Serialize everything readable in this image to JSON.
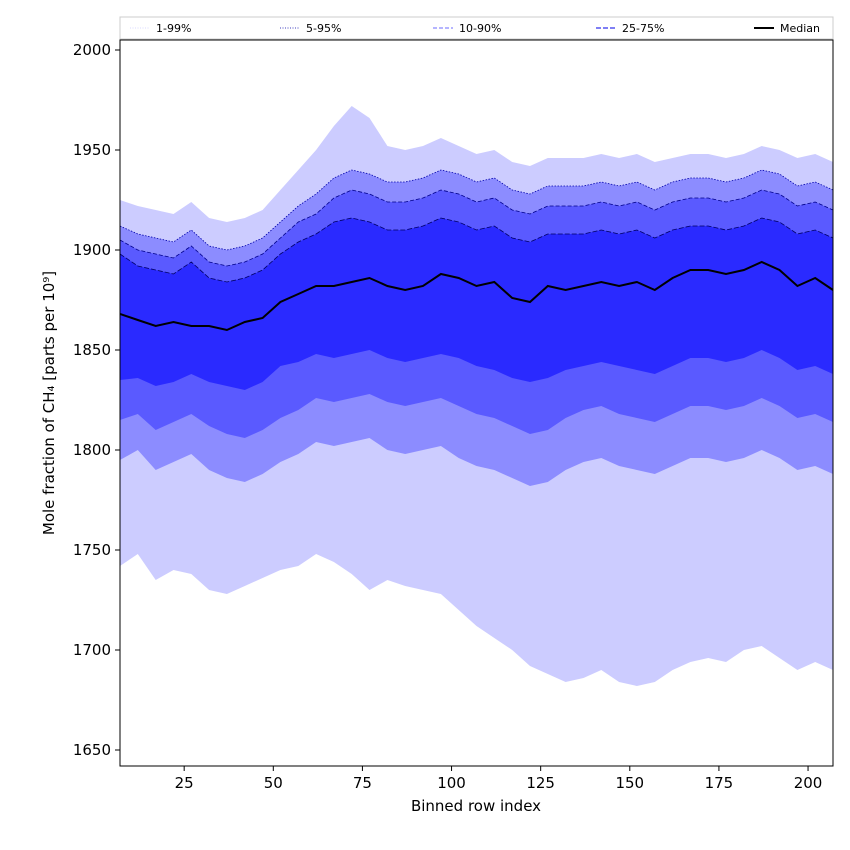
{
  "chart_data": {
    "type": "area",
    "xlabel": "Binned row index",
    "ylabel": "Mole fraction of CH₄ [parts per 10⁹]",
    "xlim": [
      7,
      207
    ],
    "ylim": [
      1642,
      2005
    ],
    "x_ticks": [
      25,
      50,
      75,
      100,
      125,
      150,
      175,
      200
    ],
    "y_ticks": [
      1650,
      1700,
      1750,
      1800,
      1850,
      1900,
      1950,
      2000
    ],
    "grid": false,
    "legend_placement": "top, above plot",
    "legend": [
      {
        "label": "1-99%",
        "style": "dotted",
        "color": "#ccccff"
      },
      {
        "label": "5-95%",
        "style": "dotted",
        "color": "#0000aa"
      },
      {
        "label": "10-90%",
        "style": "dashed",
        "color": "#6b6bff"
      },
      {
        "label": "25-75%",
        "style": "dashed",
        "color": "#3333ee"
      },
      {
        "label": "Median",
        "style": "solid",
        "color": "#000000"
      }
    ],
    "colors": {
      "band_1_99": "#ccccff",
      "band_5_95": "#8c8cff",
      "band_10_90": "#5a5aff",
      "band_25_75": "#2a2aff",
      "median": "#000000"
    },
    "x": [
      7,
      12,
      17,
      22,
      27,
      32,
      37,
      42,
      47,
      52,
      57,
      62,
      67,
      72,
      77,
      82,
      87,
      92,
      97,
      102,
      107,
      112,
      117,
      122,
      127,
      132,
      137,
      142,
      147,
      152,
      157,
      162,
      167,
      172,
      177,
      182,
      187,
      192,
      197,
      202,
      207
    ],
    "series": [
      {
        "name": "Median",
        "values": [
          1868,
          1865,
          1862,
          1864,
          1862,
          1862,
          1860,
          1864,
          1866,
          1874,
          1878,
          1882,
          1882,
          1884,
          1886,
          1882,
          1880,
          1882,
          1888,
          1886,
          1882,
          1884,
          1876,
          1874,
          1882,
          1880,
          1882,
          1884,
          1882,
          1884,
          1880,
          1886,
          1890,
          1890,
          1888,
          1890,
          1894,
          1890,
          1882,
          1886,
          1880
        ]
      },
      {
        "name": "25-75%",
        "values": [
          [
            1835,
            1898
          ],
          [
            1836,
            1892
          ],
          [
            1832,
            1890
          ],
          [
            1834,
            1888
          ],
          [
            1838,
            1894
          ],
          [
            1834,
            1886
          ],
          [
            1832,
            1884
          ],
          [
            1830,
            1886
          ],
          [
            1834,
            1890
          ],
          [
            1842,
            1898
          ],
          [
            1844,
            1904
          ],
          [
            1848,
            1908
          ],
          [
            1846,
            1914
          ],
          [
            1848,
            1916
          ],
          [
            1850,
            1914
          ],
          [
            1846,
            1910
          ],
          [
            1844,
            1910
          ],
          [
            1846,
            1912
          ],
          [
            1848,
            1916
          ],
          [
            1846,
            1914
          ],
          [
            1842,
            1910
          ],
          [
            1840,
            1912
          ],
          [
            1836,
            1906
          ],
          [
            1834,
            1904
          ],
          [
            1836,
            1908
          ],
          [
            1840,
            1908
          ],
          [
            1842,
            1908
          ],
          [
            1844,
            1910
          ],
          [
            1842,
            1908
          ],
          [
            1840,
            1910
          ],
          [
            1838,
            1906
          ],
          [
            1842,
            1910
          ],
          [
            1846,
            1912
          ],
          [
            1846,
            1912
          ],
          [
            1844,
            1910
          ],
          [
            1846,
            1912
          ],
          [
            1850,
            1916
          ],
          [
            1846,
            1914
          ],
          [
            1840,
            1908
          ],
          [
            1842,
            1910
          ],
          [
            1838,
            1906
          ]
        ]
      },
      {
        "name": "10-90%",
        "values": [
          [
            1815,
            1905
          ],
          [
            1818,
            1900
          ],
          [
            1810,
            1898
          ],
          [
            1814,
            1896
          ],
          [
            1818,
            1902
          ],
          [
            1812,
            1894
          ],
          [
            1808,
            1892
          ],
          [
            1806,
            1894
          ],
          [
            1810,
            1898
          ],
          [
            1816,
            1906
          ],
          [
            1820,
            1914
          ],
          [
            1826,
            1918
          ],
          [
            1824,
            1926
          ],
          [
            1826,
            1930
          ],
          [
            1828,
            1928
          ],
          [
            1824,
            1924
          ],
          [
            1822,
            1924
          ],
          [
            1824,
            1926
          ],
          [
            1826,
            1930
          ],
          [
            1822,
            1928
          ],
          [
            1818,
            1924
          ],
          [
            1816,
            1926
          ],
          [
            1812,
            1920
          ],
          [
            1808,
            1918
          ],
          [
            1810,
            1922
          ],
          [
            1816,
            1922
          ],
          [
            1820,
            1922
          ],
          [
            1822,
            1924
          ],
          [
            1818,
            1922
          ],
          [
            1816,
            1924
          ],
          [
            1814,
            1920
          ],
          [
            1818,
            1924
          ],
          [
            1822,
            1926
          ],
          [
            1822,
            1926
          ],
          [
            1820,
            1924
          ],
          [
            1822,
            1926
          ],
          [
            1826,
            1930
          ],
          [
            1822,
            1928
          ],
          [
            1816,
            1922
          ],
          [
            1818,
            1924
          ],
          [
            1814,
            1920
          ]
        ]
      },
      {
        "name": "5-95%",
        "values": [
          [
            1795,
            1912
          ],
          [
            1800,
            1908
          ],
          [
            1790,
            1906
          ],
          [
            1794,
            1904
          ],
          [
            1798,
            1910
          ],
          [
            1790,
            1902
          ],
          [
            1786,
            1900
          ],
          [
            1784,
            1902
          ],
          [
            1788,
            1906
          ],
          [
            1794,
            1914
          ],
          [
            1798,
            1922
          ],
          [
            1804,
            1928
          ],
          [
            1802,
            1936
          ],
          [
            1804,
            1940
          ],
          [
            1806,
            1938
          ],
          [
            1800,
            1934
          ],
          [
            1798,
            1934
          ],
          [
            1800,
            1936
          ],
          [
            1802,
            1940
          ],
          [
            1796,
            1938
          ],
          [
            1792,
            1934
          ],
          [
            1790,
            1936
          ],
          [
            1786,
            1930
          ],
          [
            1782,
            1928
          ],
          [
            1784,
            1932
          ],
          [
            1790,
            1932
          ],
          [
            1794,
            1932
          ],
          [
            1796,
            1934
          ],
          [
            1792,
            1932
          ],
          [
            1790,
            1934
          ],
          [
            1788,
            1930
          ],
          [
            1792,
            1934
          ],
          [
            1796,
            1936
          ],
          [
            1796,
            1936
          ],
          [
            1794,
            1934
          ],
          [
            1796,
            1936
          ],
          [
            1800,
            1940
          ],
          [
            1796,
            1938
          ],
          [
            1790,
            1932
          ],
          [
            1792,
            1934
          ],
          [
            1788,
            1930
          ]
        ]
      },
      {
        "name": "1-99%",
        "values": [
          [
            1742,
            1925
          ],
          [
            1748,
            1922
          ],
          [
            1735,
            1920
          ],
          [
            1740,
            1918
          ],
          [
            1738,
            1924
          ],
          [
            1730,
            1916
          ],
          [
            1728,
            1914
          ],
          [
            1732,
            1916
          ],
          [
            1736,
            1920
          ],
          [
            1740,
            1930
          ],
          [
            1742,
            1940
          ],
          [
            1748,
            1950
          ],
          [
            1744,
            1962
          ],
          [
            1738,
            1972
          ],
          [
            1730,
            1966
          ],
          [
            1735,
            1952
          ],
          [
            1732,
            1950
          ],
          [
            1730,
            1952
          ],
          [
            1728,
            1956
          ],
          [
            1720,
            1952
          ],
          [
            1712,
            1948
          ],
          [
            1706,
            1950
          ],
          [
            1700,
            1944
          ],
          [
            1692,
            1942
          ],
          [
            1688,
            1946
          ],
          [
            1684,
            1946
          ],
          [
            1686,
            1946
          ],
          [
            1690,
            1948
          ],
          [
            1684,
            1946
          ],
          [
            1682,
            1948
          ],
          [
            1684,
            1944
          ],
          [
            1690,
            1946
          ],
          [
            1694,
            1948
          ],
          [
            1696,
            1948
          ],
          [
            1694,
            1946
          ],
          [
            1700,
            1948
          ],
          [
            1702,
            1952
          ],
          [
            1696,
            1950
          ],
          [
            1690,
            1946
          ],
          [
            1694,
            1948
          ],
          [
            1690,
            1944
          ]
        ]
      }
    ]
  }
}
